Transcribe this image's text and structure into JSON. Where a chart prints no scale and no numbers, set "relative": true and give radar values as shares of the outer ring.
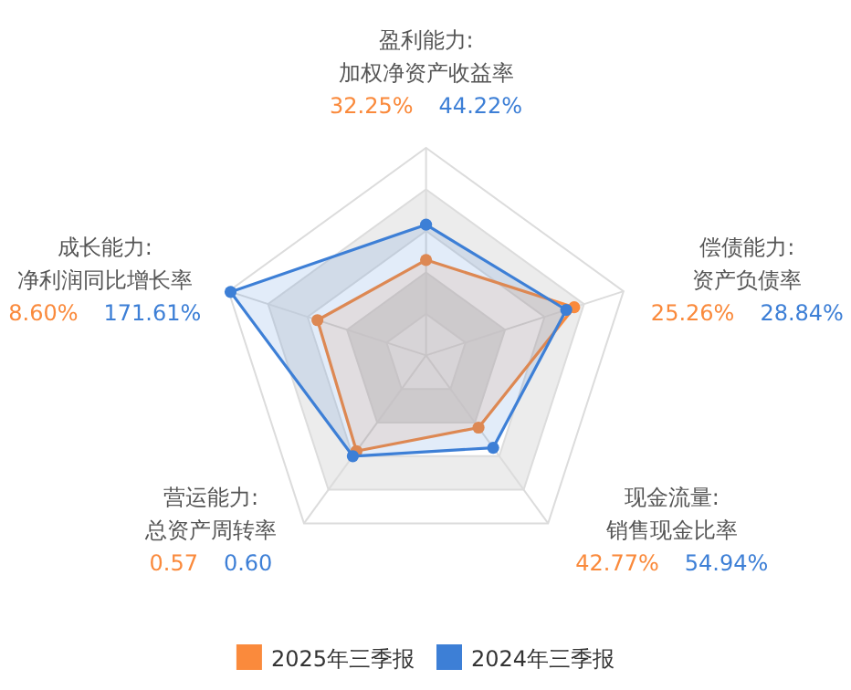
{
  "chart_data": {
    "type": "radar",
    "relative": true,
    "legend": "bottom",
    "marker": "circle",
    "categories": [
      "盈利能力:\n加权净资产收益率",
      "偿债能力:\n资产负债率",
      "现金流量:\n销售现金比率",
      "营运能力:\n总资产周转率",
      "成长能力:\n净利润同比增长率"
    ],
    "series": [
      {
        "name": "2025年三季报",
        "color": "#fa8a3c",
        "values": [
          0.46,
          0.75,
          0.43,
          0.57,
          0.55
        ]
      },
      {
        "name": "2024年三季报",
        "color": "#3d7fd6",
        "values": [
          0.63,
          0.71,
          0.55,
          0.6,
          0.99
        ]
      }
    ],
    "annotations": [
      {
        "text": "32.25%",
        "x": "盈利能力:\n加权净资产收益率"
      },
      {
        "text": "44.22%",
        "x": "盈利能力:\n加权净资产收益率"
      },
      {
        "text": "25.26%",
        "x": "偿债能力:\n资产负债率"
      },
      {
        "text": "28.84%",
        "x": "偿债能力:\n资产负债率"
      },
      {
        "text": "42.77%",
        "x": "现金流量:\n销售现金比率"
      },
      {
        "text": "54.94%",
        "x": "现金流量:\n销售现金比率"
      },
      {
        "text": "0.57",
        "x": "营运能力:\n总资产周转率"
      },
      {
        "text": "0.60",
        "x": "营运能力:\n总资产周转率"
      },
      {
        "text": "8.60%",
        "x": "成长能力:\n净利润同比增长率"
      },
      {
        "text": "171.61%",
        "x": "成长能力:\n净利润同比增长率"
      }
    ]
  }
}
